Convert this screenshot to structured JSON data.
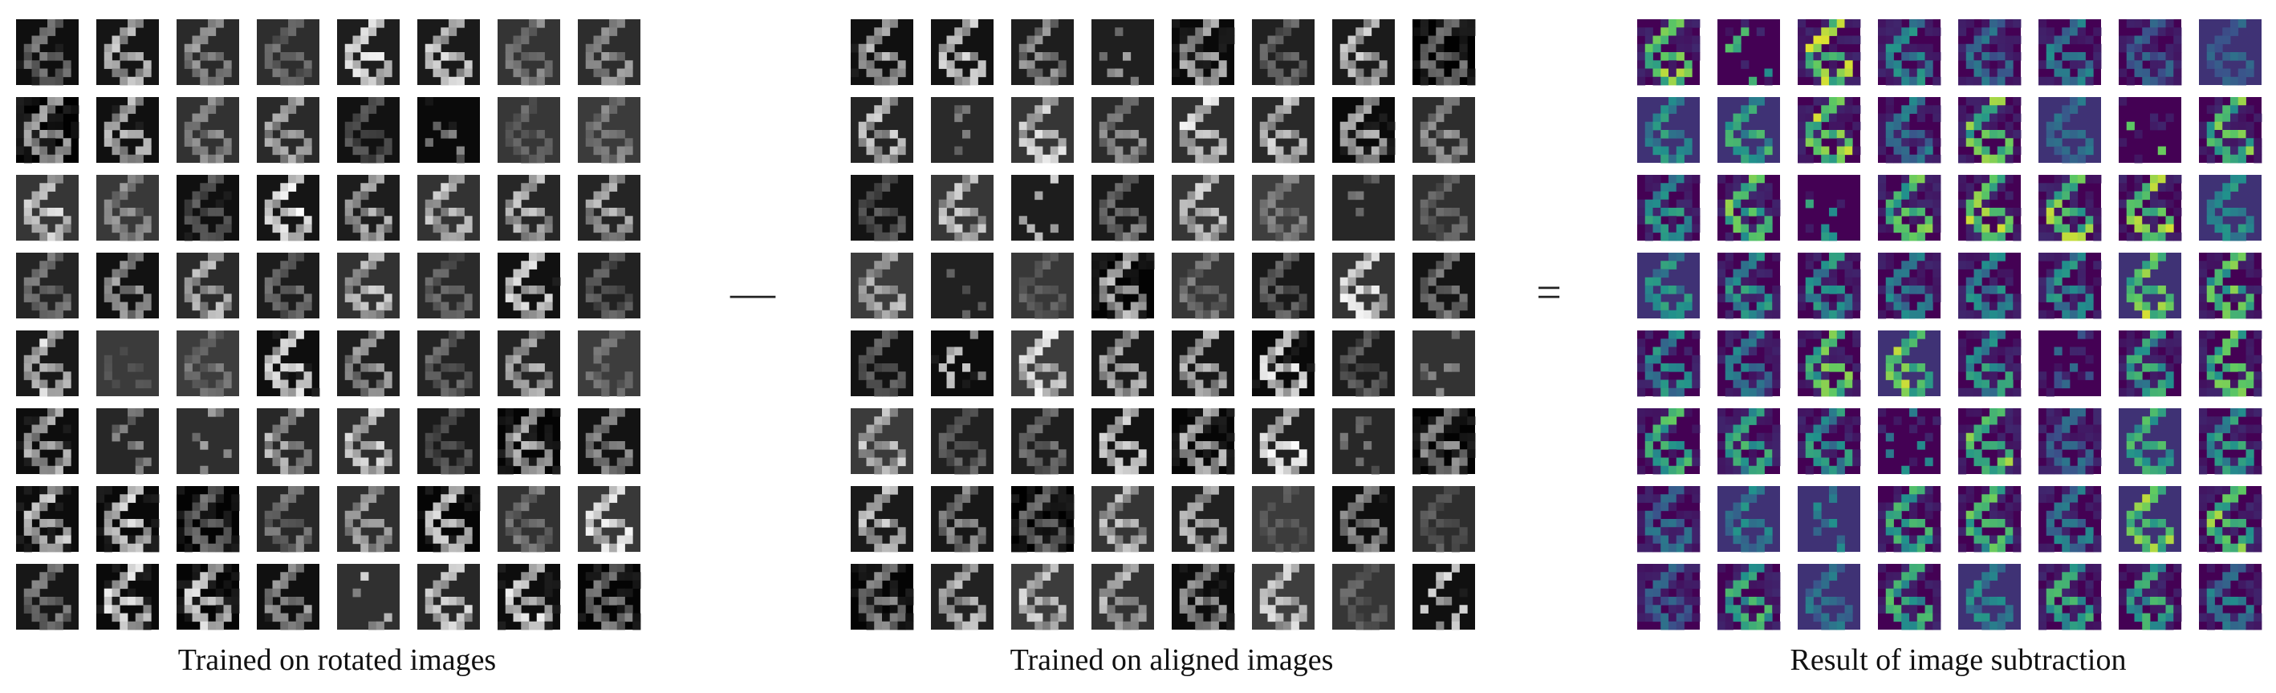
{
  "panels": [
    {
      "id": "rotated",
      "caption": "Trained on rotated images",
      "colormap": "gray",
      "background": "#000000",
      "seed": 11
    },
    {
      "id": "aligned",
      "caption": "Trained on aligned images",
      "colormap": "gray",
      "background": "#000000",
      "seed": 37
    },
    {
      "id": "diff",
      "caption": "Result of image subtraction",
      "colormap": "viridis",
      "background": "#440154",
      "seed": 73
    }
  ],
  "operators": {
    "minus": "—",
    "equals": "="
  },
  "grid": {
    "rows": 8,
    "cols": 8
  },
  "colors": {
    "viridis_low": "#440154",
    "viridis_mid": "#3b528b",
    "viridis_teal": "#21918c",
    "viridis_green": "#5ec962",
    "viridis_high": "#fde725"
  }
}
